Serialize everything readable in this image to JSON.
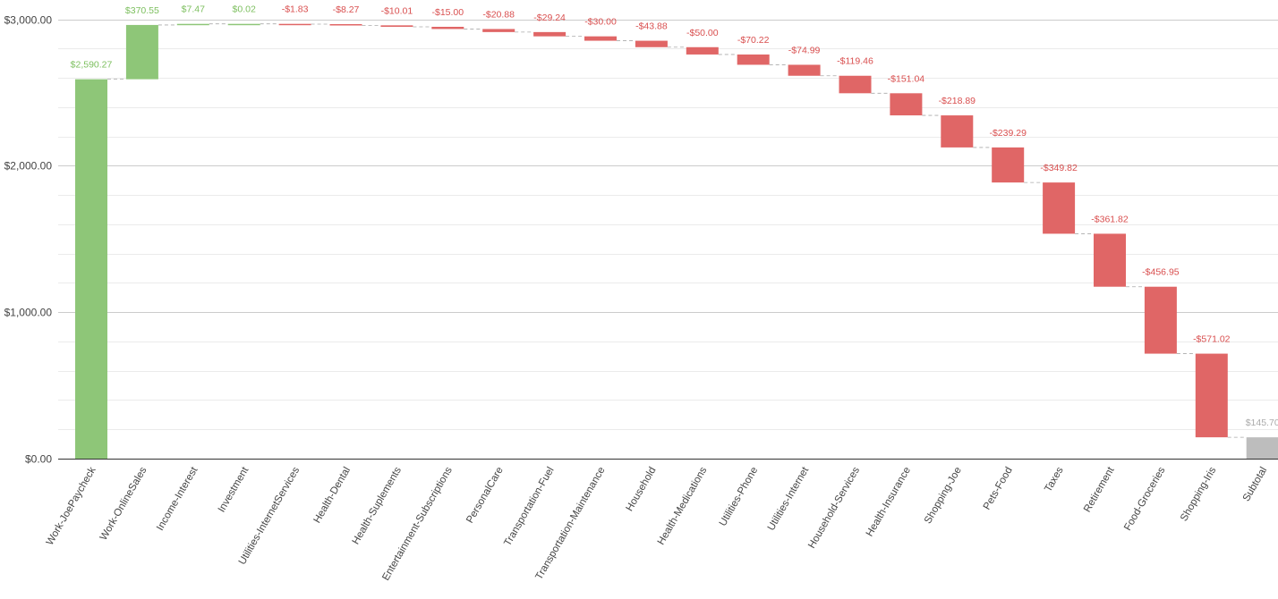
{
  "chart_data": {
    "type": "waterfall",
    "title": "",
    "xlabel": "",
    "ylabel": "",
    "ylim": [
      0,
      3000
    ],
    "yticks": [
      0,
      1000,
      2000,
      3000
    ],
    "ytick_labels": [
      "$0.00",
      "$1,000.00",
      "$2,000.00",
      "$3,000.00"
    ],
    "grid": true,
    "colors": {
      "increase": "#8ec678",
      "decrease": "#e06666",
      "total": "#bdbdbd",
      "increase_label": "#7cbf5e",
      "decrease_label": "#d94f4f",
      "total_label": "#aaaaaa"
    },
    "categories": [
      "Work-JoePaycheck",
      "Work-OnlineSales",
      "Income-Interest",
      "Investment",
      "Utilities-InternetServices",
      "Health-Dental",
      "Health-Suplements",
      "Entertainment-Subscriptions",
      "PersonalCare",
      "Transportation-Fuel",
      "Transportation-Maintenance",
      "Household",
      "Health-Medications",
      "Utilities-Phone",
      "Utilities-Internet",
      "Household-Services",
      "Health-Insurance",
      "Shopping-Joe",
      "Pets-Food",
      "Taxes",
      "Retirement",
      "Food-Groceries",
      "Shopping-Iris",
      "Subtotal"
    ],
    "values": [
      2590.27,
      370.55,
      7.47,
      0.02,
      -1.83,
      -8.27,
      -10.01,
      -15.0,
      -20.88,
      -29.24,
      -30.0,
      -43.88,
      -50.0,
      -70.22,
      -74.99,
      -119.46,
      -151.04,
      -218.89,
      -239.29,
      -349.82,
      -361.82,
      -456.95,
      -571.02,
      145.7
    ],
    "value_labels": [
      "$2,590.27",
      "$370.55",
      "$7.47",
      "$0.02",
      "-$1.83",
      "-$8.27",
      "-$10.01",
      "-$15.00",
      "-$20.88",
      "-$29.24",
      "-$30.00",
      "-$43.88",
      "-$50.00",
      "-$70.22",
      "-$74.99",
      "-$119.46",
      "-$151.04",
      "-$218.89",
      "-$239.29",
      "-$349.82",
      "-$361.82",
      "-$456.95",
      "-$571.02",
      "$145.70"
    ],
    "total_index": 23
  }
}
